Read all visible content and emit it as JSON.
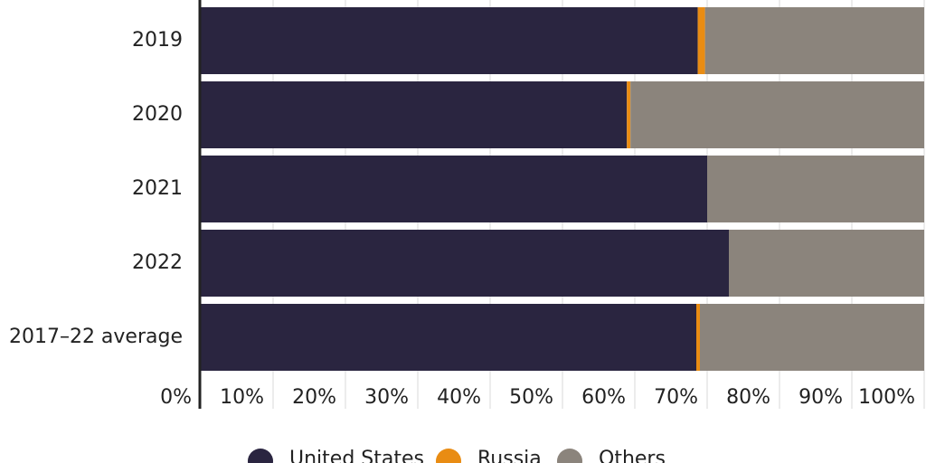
{
  "chart_data": {
    "type": "stacked-bar-horizontal",
    "categories": [
      "2019",
      "2020",
      "2021",
      "2022",
      "2017–22 average"
    ],
    "series": [
      {
        "name": "United States",
        "color": "#2a2540",
        "values": [
          68.7,
          58.9,
          70.0,
          73.0,
          68.5
        ]
      },
      {
        "name": "Russia",
        "color": "#e98c13",
        "values": [
          1.0,
          0.5,
          0,
          0,
          0.5
        ]
      },
      {
        "name": "Others",
        "color": "#8b847c",
        "values": [
          30.3,
          40.6,
          30.0,
          27.0,
          31.0
        ]
      }
    ],
    "xlim": [
      0,
      100
    ],
    "xticks": [
      {
        "value": 0,
        "label": "0%"
      },
      {
        "value": 10,
        "label": "10%"
      },
      {
        "value": 20,
        "label": "20%"
      },
      {
        "value": 30,
        "label": "30%"
      },
      {
        "value": 40,
        "label": "40%"
      },
      {
        "value": 50,
        "label": "50%"
      },
      {
        "value": 60,
        "label": "60%"
      },
      {
        "value": 70,
        "label": "70%"
      },
      {
        "value": 80,
        "label": "80%"
      },
      {
        "value": 90,
        "label": "90%"
      },
      {
        "value": 100,
        "label": "100%"
      }
    ],
    "grid": true
  }
}
